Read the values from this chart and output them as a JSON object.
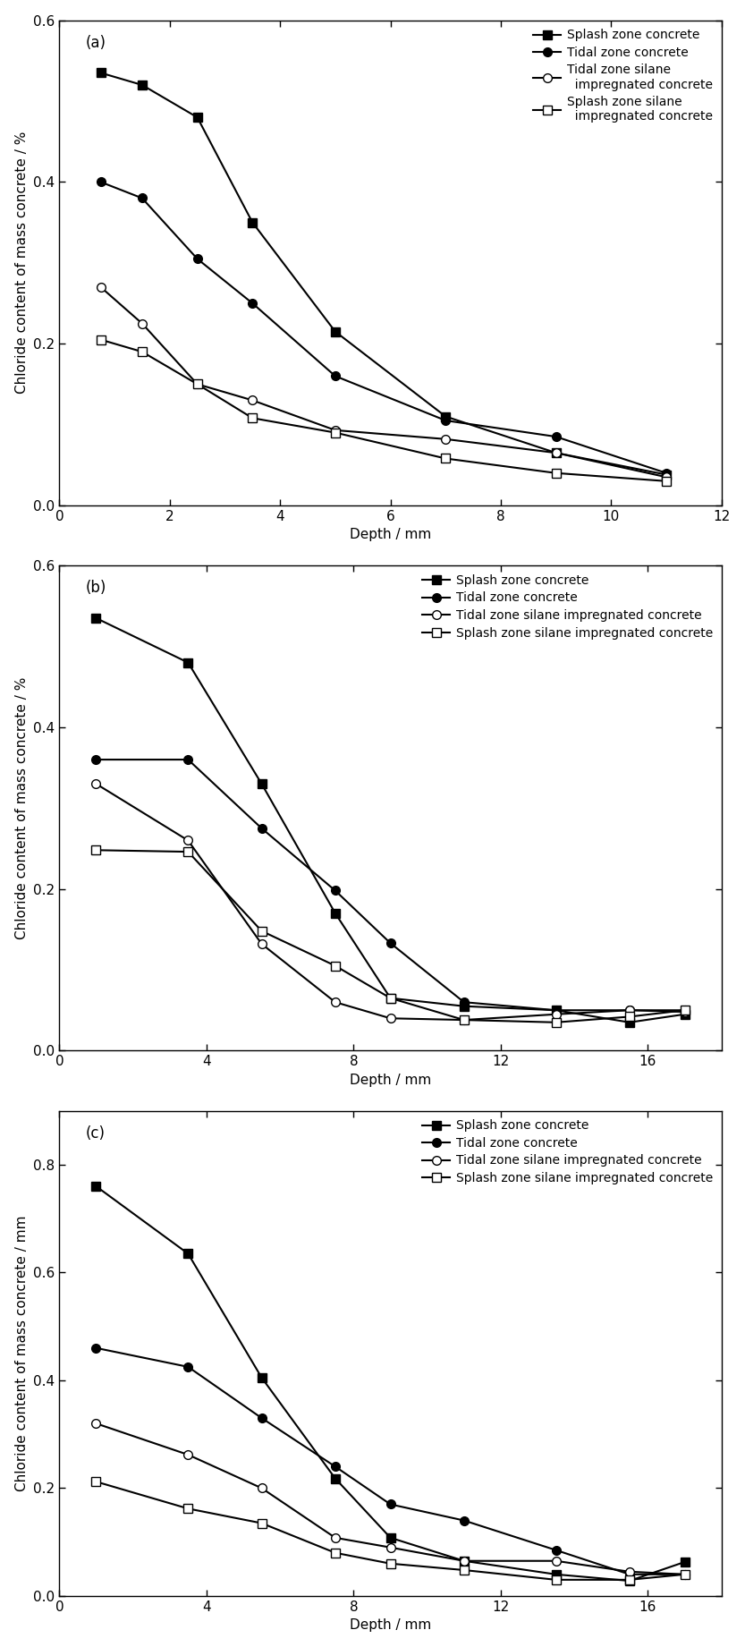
{
  "panels": [
    {
      "label": "(a)",
      "ylabel": "Chloride content of mass concrete / %",
      "xlabel": "Depth / mm",
      "xlim": [
        0,
        12
      ],
      "ylim": [
        0,
        0.6
      ],
      "xticks": [
        0,
        2,
        4,
        6,
        8,
        10,
        12
      ],
      "yticks": [
        0.0,
        0.2,
        0.4,
        0.6
      ],
      "legend_labels": [
        "Splash zone concrete",
        "Tidal zone concrete",
        "Tidal zone silane\n  impregnated concrete",
        "Splash zone silane\n  impregnated concrete"
      ],
      "series": [
        {
          "label": "Splash zone concrete",
          "x": [
            0.75,
            1.5,
            2.5,
            3.5,
            5.0,
            7.0,
            9.0,
            11.0
          ],
          "y": [
            0.535,
            0.52,
            0.48,
            0.35,
            0.215,
            0.11,
            0.065,
            0.038
          ],
          "marker": "s",
          "fillstyle": "full"
        },
        {
          "label": "Tidal zone concrete",
          "x": [
            0.75,
            1.5,
            2.5,
            3.5,
            5.0,
            7.0,
            9.0,
            11.0
          ],
          "y": [
            0.4,
            0.38,
            0.305,
            0.25,
            0.16,
            0.105,
            0.085,
            0.04
          ],
          "marker": "o",
          "fillstyle": "full"
        },
        {
          "label": "Tidal zone silane\n  impregnated concrete",
          "x": [
            0.75,
            1.5,
            2.5,
            3.5,
            5.0,
            7.0,
            9.0,
            11.0
          ],
          "y": [
            0.27,
            0.225,
            0.15,
            0.13,
            0.093,
            0.082,
            0.065,
            0.035
          ],
          "marker": "o",
          "fillstyle": "none"
        },
        {
          "label": "Splash zone silane\n  impregnated concrete",
          "x": [
            0.75,
            1.5,
            2.5,
            3.5,
            5.0,
            7.0,
            9.0,
            11.0
          ],
          "y": [
            0.205,
            0.19,
            0.15,
            0.108,
            0.09,
            0.058,
            0.04,
            0.03
          ],
          "marker": "s",
          "fillstyle": "none"
        }
      ]
    },
    {
      "label": "(b)",
      "ylabel": "Chloride content of mass concrete / %",
      "xlabel": "Depth / mm",
      "xlim": [
        0,
        18
      ],
      "ylim": [
        0,
        0.6
      ],
      "xticks": [
        0,
        4,
        8,
        12,
        16
      ],
      "yticks": [
        0.0,
        0.2,
        0.4,
        0.6
      ],
      "legend_labels": [
        "Splash zone concrete",
        "Tidal zone concrete",
        "Tidal zone silane impregnated concrete",
        "Splash zone silane impregnated concrete"
      ],
      "series": [
        {
          "label": "Splash zone concrete",
          "x": [
            1.0,
            3.5,
            5.5,
            7.5,
            9.0,
            11.0,
            13.5,
            15.5,
            17.0
          ],
          "y": [
            0.535,
            0.48,
            0.33,
            0.17,
            0.065,
            0.055,
            0.05,
            0.035,
            0.045
          ],
          "marker": "s",
          "fillstyle": "full"
        },
        {
          "label": "Tidal zone concrete",
          "x": [
            1.0,
            3.5,
            5.5,
            7.5,
            9.0,
            11.0,
            13.5,
            15.5,
            17.0
          ],
          "y": [
            0.36,
            0.36,
            0.275,
            0.198,
            0.133,
            0.06,
            0.05,
            0.05,
            0.05
          ],
          "marker": "o",
          "fillstyle": "full"
        },
        {
          "label": "Tidal zone silane impregnated concrete",
          "x": [
            1.0,
            3.5,
            5.5,
            7.5,
            9.0,
            11.0,
            13.5,
            15.5,
            17.0
          ],
          "y": [
            0.33,
            0.26,
            0.132,
            0.06,
            0.04,
            0.038,
            0.045,
            0.05,
            0.048
          ],
          "marker": "o",
          "fillstyle": "none"
        },
        {
          "label": "Splash zone silane impregnated concrete",
          "x": [
            1.0,
            3.5,
            5.5,
            7.5,
            9.0,
            11.0,
            13.5,
            15.5,
            17.0
          ],
          "y": [
            0.248,
            0.246,
            0.148,
            0.105,
            0.065,
            0.038,
            0.035,
            0.042,
            0.05
          ],
          "marker": "s",
          "fillstyle": "none"
        }
      ]
    },
    {
      "label": "(c)",
      "ylabel": "Chloride content of mass concrete / mm",
      "xlabel": "Depth / mm",
      "xlim": [
        0,
        18
      ],
      "ylim": [
        0,
        0.9
      ],
      "xticks": [
        0,
        4,
        8,
        12,
        16
      ],
      "yticks": [
        0.0,
        0.2,
        0.4,
        0.6,
        0.8
      ],
      "legend_labels": [
        "Splash zone concrete",
        "Tidal zone concrete",
        "Tidal zone silane impregnated concrete",
        "Splash zone silane impregnated concrete"
      ],
      "series": [
        {
          "label": "Splash zone concrete",
          "x": [
            1.0,
            3.5,
            5.5,
            7.5,
            9.0,
            11.0,
            13.5,
            15.5,
            17.0
          ],
          "y": [
            0.76,
            0.635,
            0.405,
            0.218,
            0.108,
            0.065,
            0.04,
            0.028,
            0.063
          ],
          "marker": "s",
          "fillstyle": "full"
        },
        {
          "label": "Tidal zone concrete",
          "x": [
            1.0,
            3.5,
            5.5,
            7.5,
            9.0,
            11.0,
            13.5,
            15.5,
            17.0
          ],
          "y": [
            0.46,
            0.425,
            0.33,
            0.24,
            0.17,
            0.14,
            0.085,
            0.04,
            0.04
          ],
          "marker": "o",
          "fillstyle": "full"
        },
        {
          "label": "Tidal zone silane impregnated concrete",
          "x": [
            1.0,
            3.5,
            5.5,
            7.5,
            9.0,
            11.0,
            13.5,
            15.5,
            17.0
          ],
          "y": [
            0.32,
            0.262,
            0.2,
            0.108,
            0.09,
            0.065,
            0.065,
            0.045,
            0.04
          ],
          "marker": "o",
          "fillstyle": "none"
        },
        {
          "label": "Splash zone silane impregnated concrete",
          "x": [
            1.0,
            3.5,
            5.5,
            7.5,
            9.0,
            11.0,
            13.5,
            15.5,
            17.0
          ],
          "y": [
            0.212,
            0.162,
            0.135,
            0.08,
            0.06,
            0.048,
            0.03,
            0.03,
            0.04
          ],
          "marker": "s",
          "fillstyle": "none"
        }
      ]
    }
  ],
  "figure_width": 8.33,
  "figure_height": 18.41,
  "dpi": 100,
  "background_color": "#ffffff",
  "font_size": 12,
  "label_font_size": 11,
  "tick_font_size": 11,
  "marker_size": 7,
  "line_width": 1.5
}
